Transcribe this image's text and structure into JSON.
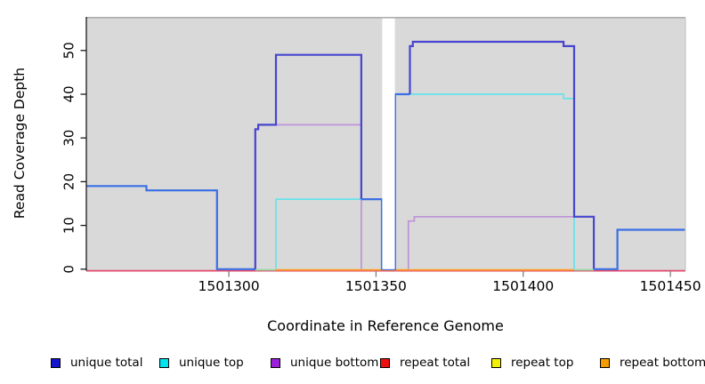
{
  "chart_data": {
    "type": "line",
    "subtype": "step-coverage",
    "title": "",
    "xlabel": "Coordinate in Reference Genome",
    "ylabel": "Read Coverage Depth",
    "x_ticks": [
      1501300,
      1501350,
      1501400,
      1501450
    ],
    "x_tick_labels": [
      "1501300",
      "1501350",
      "1501400",
      "1501450"
    ],
    "y_ticks": [
      0,
      10,
      20,
      30,
      40,
      50
    ],
    "y_tick_labels": [
      "0",
      "10",
      "20",
      "30",
      "40",
      "50"
    ],
    "xlim": [
      1501251.6,
      1501455.1
    ],
    "ylim": [
      0,
      57.6
    ],
    "grid": false,
    "panel_bg": "#D9D9D9",
    "gap_no_data": {
      "from": 1501352.1,
      "to": 1501356.4
    },
    "legend_position": "bottom",
    "legend": [
      {
        "label": "unique total",
        "color": "#1414CC"
      },
      {
        "label": "unique top",
        "color": "#00E3EE"
      },
      {
        "label": "unique bottom",
        "color": "#9B1FD9"
      },
      {
        "label": "repeat total",
        "color": "#EE1010"
      },
      {
        "label": "repeat top",
        "color": "#F2F200"
      },
      {
        "label": "repeat bottom",
        "color": "#F59D00"
      }
    ],
    "series": [
      {
        "name": "repeat total",
        "width": 1.7,
        "segments": [
          {
            "color": "#E2486A",
            "dy": 1.8,
            "points": [
              [
                1501251.6,
                0
              ],
              [
                1501455.1,
                0
              ]
            ]
          }
        ]
      },
      {
        "name": "repeat bottom",
        "width": 1.7,
        "segments": [
          {
            "color": "#FF9E21",
            "dy": 0.8,
            "points": [
              [
                1501316,
                0
              ],
              [
                1501417,
                0
              ]
            ]
          }
        ]
      },
      {
        "name": "repeat top",
        "width": 1.7,
        "segments": [
          {
            "color": "#93D9A2",
            "dy": 0.8,
            "points": [
              [
                1501309,
                0
              ],
              [
                1501316,
                0
              ]
            ]
          },
          {
            "color": "#93D9A2",
            "dy": 0.8,
            "points": [
              [
                1501417.3,
                0
              ],
              [
                1501424,
                0
              ]
            ]
          }
        ]
      },
      {
        "name": "unique top",
        "width": 1.7,
        "segments": [
          {
            "color": "#66E2EA",
            "dy": 0,
            "points": [
              [
                1501251.6,
                19
              ],
              [
                1501272,
                19
              ],
              [
                1501272,
                18
              ],
              [
                1501296,
                18
              ],
              [
                1501296,
                0
              ]
            ]
          },
          {
            "color": "#66E2EA",
            "dy": 0,
            "points": [
              [
                1501316,
                0
              ],
              [
                1501316,
                16
              ],
              [
                1501352,
                16
              ],
              [
                1501352,
                0
              ]
            ]
          },
          {
            "color": "#66E2EA",
            "dy": 0,
            "points": [
              [
                1501356.5,
                0
              ],
              [
                1501356.5,
                40
              ],
              [
                1501413.7,
                40
              ],
              [
                1501413.7,
                39
              ],
              [
                1501417.3,
                39
              ],
              [
                1501417.3,
                0
              ]
            ]
          },
          {
            "color": "#66E2EA",
            "dy": 0,
            "points": [
              [
                1501432,
                0
              ],
              [
                1501432,
                9
              ],
              [
                1501455.1,
                9
              ]
            ]
          }
        ]
      },
      {
        "name": "unique bottom",
        "width": 1.7,
        "segments": [
          {
            "color": "#BD93D8",
            "dy": 0,
            "points": [
              [
                1501309,
                0
              ],
              [
                1501309,
                32
              ],
              [
                1501310,
                32
              ],
              [
                1501310,
                33
              ],
              [
                1501345,
                33
              ],
              [
                1501345,
                0
              ]
            ]
          },
          {
            "color": "#BD93D8",
            "dy": 0,
            "points": [
              [
                1501361,
                0
              ],
              [
                1501361,
                11
              ],
              [
                1501363,
                11
              ],
              [
                1501363,
                12
              ],
              [
                1501424,
                12
              ],
              [
                1501424,
                0
              ]
            ]
          }
        ]
      },
      {
        "name": "unique total",
        "width": 2.2,
        "segments": [
          {
            "color": "#3A6FE4",
            "dy": 0,
            "points": [
              [
                1501251.6,
                19
              ],
              [
                1501272,
                19
              ],
              [
                1501272,
                18
              ],
              [
                1501296,
                18
              ],
              [
                1501296,
                0
              ],
              [
                1501309,
                0
              ]
            ]
          },
          {
            "color": "#4745CF",
            "dy": 0,
            "points": [
              [
                1501309,
                0
              ],
              [
                1501309,
                32
              ],
              [
                1501310,
                32
              ],
              [
                1501310,
                33
              ],
              [
                1501316,
                33
              ],
              [
                1501316,
                49
              ],
              [
                1501345,
                49
              ],
              [
                1501345,
                16
              ]
            ]
          },
          {
            "color": "#3A6FE4",
            "dy": 0,
            "points": [
              [
                1501345,
                16
              ],
              [
                1501352,
                16
              ],
              [
                1501352,
                0
              ],
              [
                1501356.5,
                0
              ],
              [
                1501356.5,
                40
              ],
              [
                1501361.5,
                40
              ]
            ]
          },
          {
            "color": "#4745CF",
            "dy": 0,
            "points": [
              [
                1501361.5,
                40
              ],
              [
                1501361.5,
                51
              ],
              [
                1501362.5,
                51
              ],
              [
                1501362.5,
                52
              ],
              [
                1501413.7,
                52
              ],
              [
                1501413.7,
                51
              ],
              [
                1501417.3,
                51
              ],
              [
                1501417.3,
                12
              ],
              [
                1501424,
                12
              ],
              [
                1501424,
                0
              ]
            ]
          },
          {
            "color": "#3A6FE4",
            "dy": 0,
            "points": [
              [
                1501424,
                0
              ],
              [
                1501432,
                0
              ],
              [
                1501432,
                9
              ],
              [
                1501455.1,
                9
              ]
            ]
          }
        ]
      }
    ],
    "axis_colors": {
      "y_axis": "#1a1a1a",
      "x_tick": "#808080",
      "panel_top_border": "#ADADAD",
      "panel_right_border": "#C6C6C6"
    }
  }
}
